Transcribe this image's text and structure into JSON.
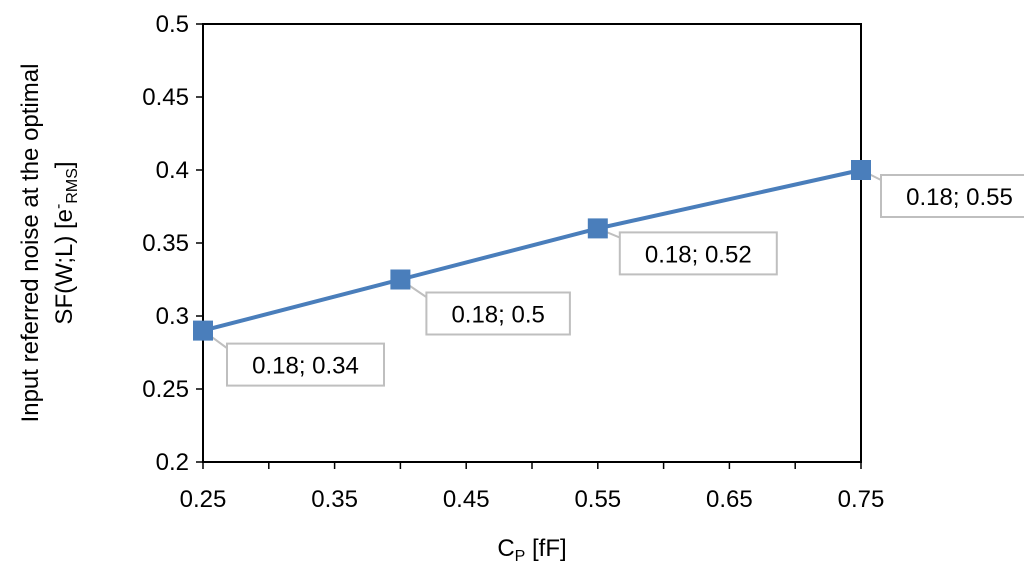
{
  "chart_data": {
    "type": "line",
    "x": [
      0.25,
      0.4,
      0.55,
      0.75
    ],
    "series": [
      {
        "values": [
          0.29,
          0.325,
          0.36,
          0.4
        ],
        "color": "#4a7ebb",
        "marker": "square"
      }
    ],
    "data_labels": [
      "0.18; 0.34",
      "0.18; 0.5",
      "0.18; 0.52",
      "0.18; 0.55"
    ],
    "xlabel": {
      "main": "C",
      "sub": "P",
      "rest": " [fF]"
    },
    "ylabel": {
      "line1": "Input referred noise at the optimal",
      "line2_pre": "SF(W;L) [e",
      "line2_sup": "-",
      "line2_sub": "RMS",
      "line2_post": "]"
    },
    "xlim": [
      0.25,
      0.75
    ],
    "ylim": [
      0.2,
      0.5
    ],
    "x_ticks": [
      "0.25",
      "0.35",
      "0.45",
      "0.55",
      "0.65",
      "0.75"
    ],
    "x_tick_values": [
      0.25,
      0.35,
      0.45,
      0.55,
      0.65,
      0.75
    ],
    "x_minor_step": 0.05,
    "y_ticks": [
      "0.2",
      "0.25",
      "0.3",
      "0.35",
      "0.4",
      "0.45",
      "0.5"
    ],
    "y_tick_values": [
      0.2,
      0.25,
      0.3,
      0.35,
      0.4,
      0.45,
      0.5
    ],
    "grid": false,
    "legend": "none",
    "label_border_color": "#bfbfbf"
  }
}
